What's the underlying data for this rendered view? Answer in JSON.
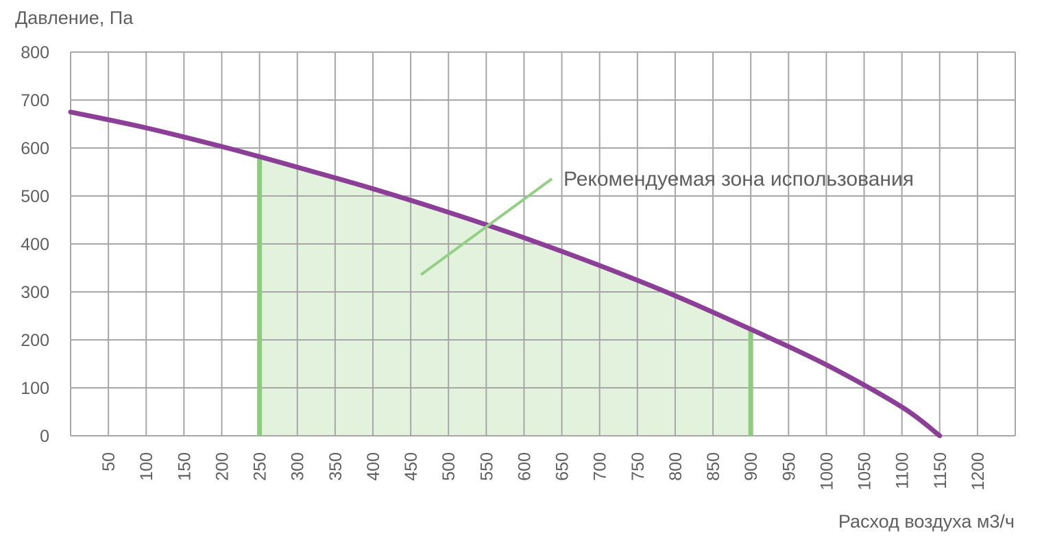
{
  "chart_data": {
    "type": "line",
    "ylabel": "Давление, Па",
    "xlabel": "Расход воздуха м3/ч",
    "xlim": [
      0,
      1250
    ],
    "ylim": [
      0,
      800
    ],
    "grid": true,
    "y_ticks": [
      "0",
      "100",
      "200",
      "300",
      "400",
      "500",
      "600",
      "700",
      "800"
    ],
    "x_ticks": [
      "50",
      "100",
      "150",
      "200",
      "250",
      "300",
      "350",
      "400",
      "450",
      "500",
      "550",
      "600",
      "650",
      "700",
      "750",
      "800",
      "850",
      "900",
      "950",
      "1000",
      "1050",
      "1100",
      "1150",
      "1200"
    ],
    "series": [
      {
        "x": [
          0,
          100,
          200,
          250,
          300,
          400,
          500,
          600,
          700,
          800,
          900,
          1000,
          1100,
          1150
        ],
        "y": [
          675,
          642,
          603,
          582,
          560,
          515,
          466,
          413,
          355,
          292,
          222,
          148,
          60,
          0
        ]
      }
    ],
    "recommended_zone": {
      "x_from": 250,
      "x_to": 900,
      "label": "Рекомендуемая зона использования"
    },
    "colors": {
      "curve": "#8b3f96",
      "zone_fill": "#e2f2dc",
      "zone_edge": "#8dcc7f",
      "grid": "#a6a6a6",
      "text": "#5f5f5f"
    }
  }
}
